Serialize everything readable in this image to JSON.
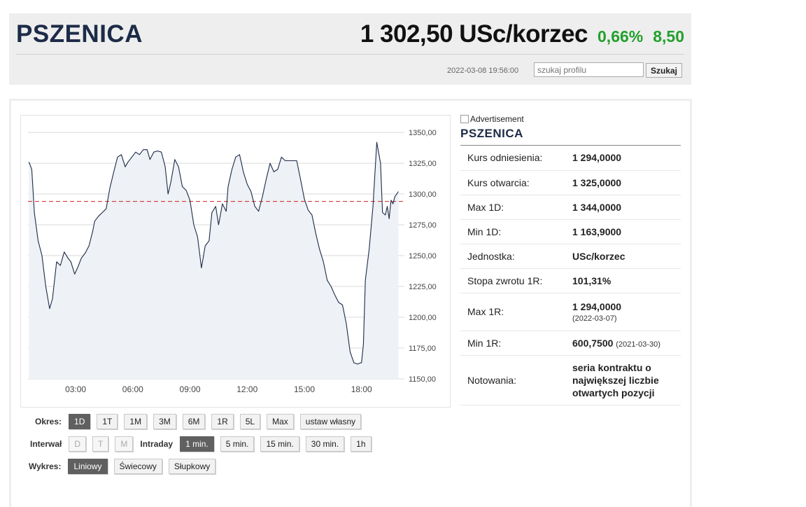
{
  "header": {
    "title": "PSZENICA",
    "price": "1 302,50 USc/korzec",
    "change_pct": "0,66%",
    "change_abs": "8,50",
    "timestamp": "2022-03-08 19:56:00",
    "search_placeholder": "szukaj profilu",
    "search_button": "Szukaj"
  },
  "colors": {
    "up": "#23a02c",
    "title": "#1c2b47",
    "line": "#1c2b47",
    "reference": "#cc2222"
  },
  "chart_data": {
    "type": "line",
    "title": "",
    "xlabel": "",
    "ylabel": "",
    "x_ticks": [
      "03:00",
      "06:00",
      "09:00",
      "12:00",
      "15:00",
      "18:00"
    ],
    "y_ticks": [
      "1150,00",
      "1175,00",
      "1200,00",
      "1225,00",
      "1250,00",
      "1275,00",
      "1300,00",
      "1325,00",
      "1350,00"
    ],
    "ylim": [
      1150,
      1358
    ],
    "xlim": [
      "00:30",
      "20:15"
    ],
    "grid": true,
    "reference_line": {
      "label": "Kurs odniesienia",
      "value": 1294
    },
    "series": [
      {
        "x": [
          "00:33",
          "00:42",
          "00:50",
          "01:02",
          "01:14",
          "01:26",
          "01:38",
          "01:47",
          "02:00",
          "02:12",
          "02:24",
          "02:36",
          "02:45",
          "02:57",
          "03:06",
          "03:18",
          "03:30",
          "03:42",
          "03:54",
          "04:00",
          "04:12",
          "04:24",
          "04:36",
          "04:48",
          "05:00",
          "05:12",
          "05:24",
          "05:36",
          "05:45",
          "05:57",
          "06:09",
          "06:21",
          "06:33",
          "06:45",
          "06:54",
          "07:06",
          "07:18",
          "07:30",
          "07:42",
          "07:51",
          "08:00",
          "08:12",
          "08:24",
          "08:36",
          "08:48",
          "09:00",
          "09:12",
          "09:24",
          "09:36",
          "09:48",
          "10:00",
          "10:09",
          "10:21",
          "10:30",
          "10:42",
          "10:54",
          "11:00",
          "11:12",
          "11:24",
          "11:36",
          "11:48",
          "12:00",
          "12:12",
          "12:24",
          "12:36",
          "12:48",
          "13:00",
          "13:12",
          "13:24",
          "13:36",
          "13:48",
          "14:00",
          "14:12",
          "14:24",
          "14:36",
          "14:48",
          "15:00",
          "15:12",
          "15:24",
          "15:36",
          "15:48",
          "16:00",
          "16:12",
          "16:24",
          "16:36",
          "16:48",
          "17:00",
          "17:12",
          "17:24",
          "17:36",
          "17:48",
          "17:57",
          "18:00",
          "18:06",
          "18:12",
          "18:24",
          "18:36",
          "18:48",
          "19:00",
          "19:06",
          "19:15",
          "19:21",
          "19:27",
          "19:33",
          "19:39",
          "19:45",
          "19:51",
          "19:56"
        ],
        "values": [
          1326,
          1320,
          1285,
          1262,
          1250,
          1225,
          1207,
          1215,
          1245,
          1242,
          1253,
          1248,
          1245,
          1235,
          1240,
          1248,
          1252,
          1258,
          1270,
          1278,
          1282,
          1285,
          1288,
          1305,
          1318,
          1330,
          1332,
          1322,
          1326,
          1330,
          1334,
          1332,
          1336,
          1336,
          1328,
          1334,
          1335,
          1334,
          1322,
          1300,
          1310,
          1328,
          1322,
          1306,
          1303,
          1295,
          1275,
          1265,
          1240,
          1258,
          1262,
          1285,
          1290,
          1275,
          1292,
          1286,
          1306,
          1320,
          1330,
          1332,
          1318,
          1308,
          1302,
          1290,
          1286,
          1298,
          1312,
          1325,
          1318,
          1320,
          1330,
          1327,
          1327,
          1327,
          1327,
          1312,
          1296,
          1287,
          1283,
          1268,
          1255,
          1245,
          1230,
          1225,
          1218,
          1212,
          1210,
          1195,
          1172,
          1163,
          1162,
          1163,
          1163,
          1178,
          1230,
          1255,
          1290,
          1342,
          1325,
          1285,
          1283,
          1290,
          1280,
          1295,
          1292,
          1298,
          1300,
          1302
        ]
      }
    ]
  },
  "controls": {
    "okres": {
      "label": "Okres:",
      "buttons": [
        "1D",
        "1T",
        "1M",
        "3M",
        "6M",
        "1R",
        "5L",
        "Max",
        "ustaw własny"
      ],
      "active": "1D"
    },
    "interwal": {
      "label": "Interwał",
      "buttons": [
        "D",
        "T",
        "M"
      ],
      "intraday_label": "Intraday",
      "intraday_buttons": [
        "1 min.",
        "5 min.",
        "15 min.",
        "30 min.",
        "1h"
      ],
      "active": "1 min."
    },
    "wykres": {
      "label": "Wykres:",
      "buttons": [
        "Liniowy",
        "Świecowy",
        "Słupkowy"
      ],
      "active": "Liniowy"
    }
  },
  "side": {
    "ad_text": "Advertisement",
    "title": "PSZENICA",
    "rows": [
      {
        "key": "Kurs odniesienia:",
        "value": "1 294,0000"
      },
      {
        "key": "Kurs otwarcia:",
        "value": "1 325,0000"
      },
      {
        "key": "Max 1D:",
        "value": "1 344,0000"
      },
      {
        "key": "Min 1D:",
        "value": "1 163,9000"
      },
      {
        "key": "Jednostka:",
        "value": "USc/korzec"
      },
      {
        "key": "Stopa zwrotu 1R:",
        "value": "101,31%"
      },
      {
        "key": "Max 1R:",
        "value": "1 294,0000",
        "note": "(2022-03-07)"
      },
      {
        "key": "Min 1R:",
        "value": "600,7500",
        "note": "(2021-03-30)"
      },
      {
        "key": "Notowania:",
        "value": "seria kontraktu o największej liczbie otwartych pozycji"
      }
    ]
  }
}
